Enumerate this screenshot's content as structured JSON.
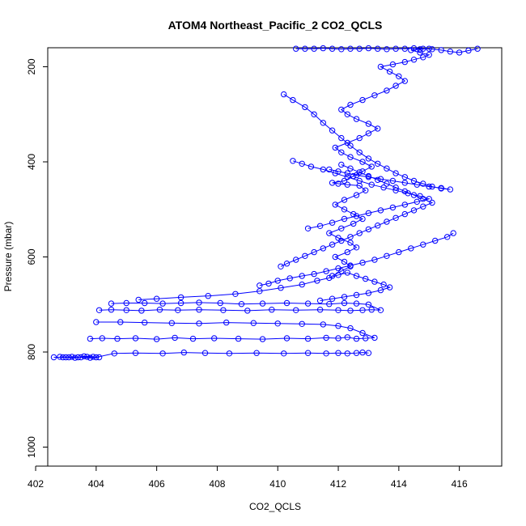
{
  "chart_data": {
    "type": "scatter",
    "title": "ATOM4 Northeast_Pacific_2 CO2_QCLS",
    "xlabel": "CO2_QCLS",
    "ylabel": "Pressure (mbar)",
    "xlim": [
      402.4,
      417.4
    ],
    "ylim": [
      1040,
      160
    ],
    "y_reversed": true,
    "grid": false,
    "legend": "none",
    "x_ticks": [
      402,
      404,
      406,
      408,
      410,
      412,
      414,
      416
    ],
    "y_ticks": [
      200,
      400,
      600,
      800,
      1000
    ],
    "marker": "open-circle",
    "connect_points": true,
    "color": "#0000ff",
    "series": [
      {
        "x": [
          402.6,
          402.9,
          403.2,
          403.5,
          403.8,
          404.1,
          403.9,
          403.6,
          403.3,
          403.0,
          402.8,
          403.1,
          403.4,
          403.7,
          404.0,
          404.6,
          405.3,
          406.2,
          406.9,
          407.6,
          408.4,
          409.3,
          410.2,
          411.0,
          411.6,
          412.0,
          412.3,
          412.6,
          412.8,
          413.0
        ],
        "y": [
          811,
          811,
          810,
          811,
          812,
          811,
          810,
          809,
          812,
          811,
          810,
          811,
          811,
          810,
          811,
          803,
          802,
          803,
          801,
          802,
          803,
          802,
          803,
          802,
          803,
          802,
          803,
          802,
          801,
          802
        ]
      },
      {
        "x": [
          403.8,
          404.2,
          404.7,
          405.3,
          406.0,
          406.6,
          407.2,
          407.9,
          408.7,
          409.5,
          410.3,
          411.0,
          411.6,
          412.0,
          412.3,
          412.6,
          412.9,
          413.2,
          412.8,
          412.4,
          412.0,
          411.5,
          410.8,
          410.0,
          409.2,
          408.3,
          407.4,
          406.5,
          405.6,
          404.8,
          404.0
        ],
        "y": [
          772,
          771,
          772,
          771,
          773,
          770,
          772,
          771,
          772,
          773,
          771,
          772,
          770,
          771,
          769,
          772,
          771,
          770,
          760,
          750,
          745,
          742,
          741,
          740,
          739,
          738,
          740,
          739,
          738,
          737,
          737
        ]
      },
      {
        "x": [
          404.1,
          404.5,
          405.0,
          405.5,
          406.1,
          406.7,
          407.4,
          408.2,
          409.0,
          409.8,
          410.6,
          411.4,
          412.0,
          412.4,
          412.8,
          413.1,
          413.4,
          413.0,
          412.6,
          412.2,
          411.7,
          411.0,
          410.3,
          409.5,
          408.8,
          408.1,
          407.4,
          406.8,
          406.2,
          405.6,
          405.0,
          404.5
        ],
        "y": [
          712,
          711,
          712,
          713,
          711,
          712,
          711,
          712,
          713,
          711,
          712,
          711,
          712,
          713,
          712,
          711,
          712,
          700,
          698,
          697,
          699,
          698,
          697,
          698,
          699,
          697,
          696,
          697,
          698,
          697,
          697,
          698
        ]
      },
      {
        "x": [
          405.4,
          406.0,
          406.8,
          407.7,
          408.6,
          409.4,
          410.1,
          410.8,
          411.3,
          411.7,
          412.0,
          412.3,
          412.6,
          412.9,
          413.2,
          413.5,
          413.7,
          413.4,
          413.0,
          412.6,
          412.2,
          411.8,
          411.4
        ],
        "y": [
          690,
          688,
          685,
          682,
          678,
          672,
          665,
          658,
          650,
          644,
          638,
          633,
          640,
          646,
          652,
          658,
          664,
          670,
          676,
          680,
          684,
          688,
          692
        ]
      },
      {
        "x": [
          411.8,
          412.1,
          412.4,
          412.2,
          411.9,
          412.3,
          412.6,
          412.4,
          412.0,
          411.7,
          412.1,
          412.5,
          412.8,
          412.5,
          412.2,
          411.9,
          412.2,
          412.6,
          412.9,
          412.7,
          412.3,
          412.0,
          411.8,
          412.2,
          412.5,
          412.8,
          413.1,
          412.8,
          412.4,
          412.1,
          411.9,
          412.3,
          412.7,
          413.0,
          413.3,
          413.0,
          412.6,
          412.3,
          412.1,
          412.4,
          412.8,
          413.2,
          413.6,
          413.9,
          414.2,
          414.0,
          413.7,
          413.4,
          413.8,
          414.2,
          414.5,
          414.8,
          415.0,
          414.7,
          414.4,
          414.7,
          415.0
        ],
        "y": [
          640,
          630,
          620,
          610,
          600,
          590,
          580,
          570,
          560,
          550,
          540,
          530,
          520,
          510,
          500,
          490,
          480,
          470,
          460,
          450,
          448,
          446,
          444,
          440,
          430,
          420,
          410,
          400,
          390,
          380,
          370,
          360,
          350,
          340,
          330,
          320,
          310,
          300,
          290,
          280,
          270,
          260,
          250,
          240,
          230,
          220,
          210,
          200,
          195,
          190,
          185,
          180,
          175,
          170,
          165,
          163,
          162
        ]
      },
      {
        "x": [
          410.2,
          410.5,
          410.9,
          411.2,
          411.5,
          411.8,
          412.1,
          412.4,
          412.7,
          413.0,
          413.3,
          413.6,
          413.9,
          414.2,
          414.5,
          414.8,
          415.1,
          415.4,
          415.7,
          415.4,
          415.0,
          414.6,
          414.2,
          413.8,
          413.4,
          413.0,
          412.6,
          412.3,
          412.0,
          411.7
        ],
        "y": [
          258,
          270,
          285,
          300,
          318,
          334,
          350,
          366,
          380,
          393,
          404,
          414,
          424,
          432,
          440,
          446,
          452,
          456,
          458,
          455,
          452,
          448,
          444,
          440,
          436,
          432,
          428,
          424,
          420,
          416
        ]
      },
      {
        "x": [
          410.6,
          410.9,
          411.2,
          411.5,
          411.8,
          412.1,
          412.4,
          412.7,
          413.0,
          413.3,
          413.6,
          413.9,
          414.2,
          414.5,
          414.8,
          415.1,
          415.4,
          415.7,
          416.0,
          416.3,
          416.6
        ],
        "y": [
          162,
          162,
          162,
          161,
          162,
          163,
          162,
          162,
          161,
          162,
          163,
          162,
          162,
          161,
          162,
          163,
          165,
          168,
          170,
          166,
          162
        ]
      },
      {
        "x": [
          411.0,
          411.4,
          411.8,
          412.2,
          412.6,
          413.0,
          413.4,
          413.8,
          414.2,
          414.6,
          415.0,
          414.7,
          414.3,
          413.9,
          413.5,
          413.1,
          412.7,
          412.3,
          411.9,
          411.5,
          411.1,
          410.8,
          410.5
        ],
        "y": [
          540,
          535,
          528,
          520,
          514,
          508,
          502,
          496,
          490,
          484,
          478,
          472,
          466,
          460,
          454,
          448,
          440,
          432,
          424,
          416,
          410,
          404,
          398
        ]
      },
      {
        "x": [
          410.1,
          410.3,
          410.6,
          410.9,
          411.2,
          411.5,
          411.8,
          412.1,
          412.4,
          412.7,
          413.0,
          413.3,
          413.6,
          413.9,
          414.2,
          414.5,
          414.8,
          415.1,
          414.8,
          414.5,
          414.2,
          413.9,
          413.6,
          413.3,
          413.0,
          412.7,
          412.4,
          412.1
        ],
        "y": [
          620,
          614,
          606,
          598,
          590,
          582,
          574,
          566,
          558,
          550,
          542,
          534,
          526,
          518,
          510,
          502,
          494,
          486,
          478,
          470,
          462,
          454,
          446,
          438,
          430,
          422,
          414,
          406
        ]
      },
      {
        "x": [
          409.4,
          409.7,
          410.0,
          410.4,
          410.8,
          411.2,
          411.6,
          412.0,
          412.4,
          412.8,
          413.2,
          413.6,
          414.0,
          414.4,
          414.8,
          415.2,
          415.6,
          415.8
        ],
        "y": [
          660,
          656,
          650,
          645,
          640,
          636,
          630,
          624,
          618,
          612,
          606,
          598,
          590,
          582,
          574,
          566,
          558,
          550
        ]
      }
    ]
  }
}
